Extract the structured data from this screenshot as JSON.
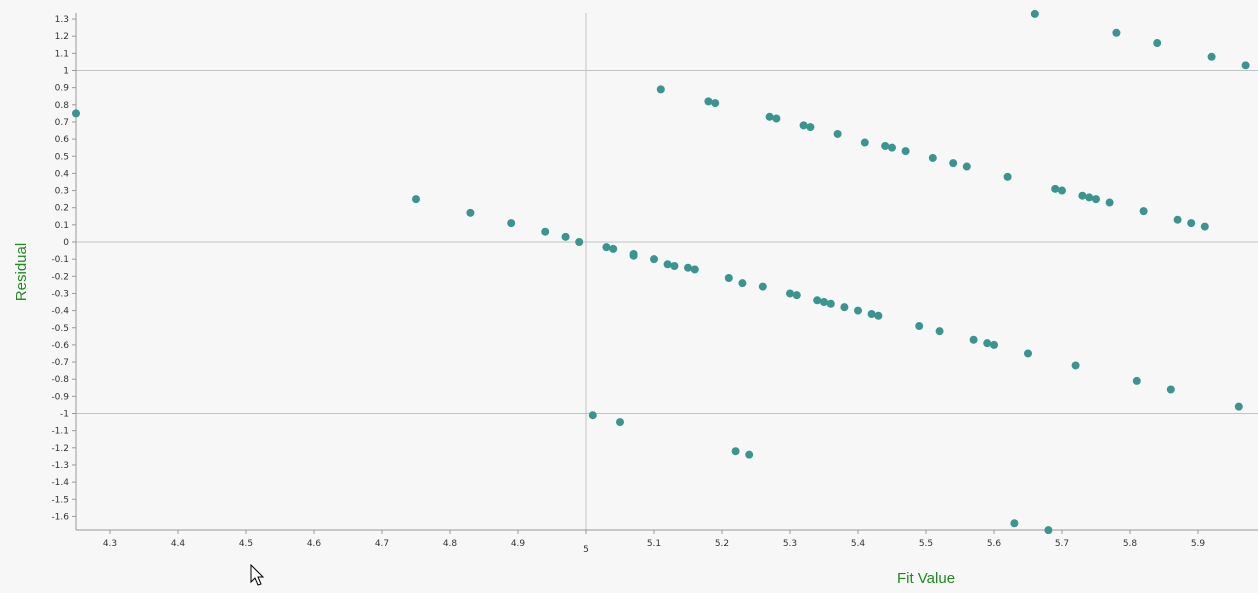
{
  "chart_data": {
    "type": "scatter",
    "title": "",
    "xlabel": "Fit Value",
    "ylabel": "Residual",
    "xlim": [
      4.25,
      5.98
    ],
    "ylim": [
      -1.68,
      1.33
    ],
    "x_ticks": [
      "4.3",
      "4.4",
      "4.5",
      "4.6",
      "4.7",
      "4.8",
      "4.9",
      "5",
      "5.1",
      "5.2",
      "5.3",
      "5.4",
      "5.5",
      "5.6",
      "5.7",
      "5.8",
      "5.9"
    ],
    "y_ticks": [
      "1.3",
      "1.2",
      "1.1",
      "1",
      "0.9",
      "0.8",
      "0.7",
      "0.6",
      "0.5",
      "0.4",
      "0.3",
      "0.2",
      "0.1",
      "0",
      "-0.1",
      "-0.2",
      "-0.3",
      "-0.4",
      "-0.5",
      "-0.6",
      "-0.7",
      "-0.8",
      "-0.9",
      "-1",
      "-1.1",
      "-1.2",
      "-1.3",
      "-1.4",
      "-1.5",
      "-1.6"
    ],
    "reference_lines": {
      "y": [
        1,
        0,
        -1
      ],
      "x": [
        5
      ]
    },
    "point_color": "#3a948f",
    "grid": false,
    "points": [
      {
        "x": 4.25,
        "y": 0.75
      },
      {
        "x": 4.75,
        "y": 0.25
      },
      {
        "x": 4.83,
        "y": 0.17
      },
      {
        "x": 4.89,
        "y": 0.11
      },
      {
        "x": 4.94,
        "y": 0.06
      },
      {
        "x": 4.97,
        "y": 0.03
      },
      {
        "x": 4.99,
        "y": 0.0
      },
      {
        "x": 5.01,
        "y": -1.01
      },
      {
        "x": 5.03,
        "y": -0.03
      },
      {
        "x": 5.04,
        "y": -0.04
      },
      {
        "x": 5.05,
        "y": -1.05
      },
      {
        "x": 5.07,
        "y": -0.07
      },
      {
        "x": 5.07,
        "y": -0.08
      },
      {
        "x": 5.1,
        "y": -0.1
      },
      {
        "x": 5.11,
        "y": 0.89
      },
      {
        "x": 5.12,
        "y": -0.13
      },
      {
        "x": 5.13,
        "y": -0.14
      },
      {
        "x": 5.15,
        "y": -0.15
      },
      {
        "x": 5.16,
        "y": -0.16
      },
      {
        "x": 5.18,
        "y": 0.82
      },
      {
        "x": 5.19,
        "y": 0.81
      },
      {
        "x": 5.21,
        "y": -0.21
      },
      {
        "x": 5.22,
        "y": -1.22
      },
      {
        "x": 5.23,
        "y": -0.24
      },
      {
        "x": 5.24,
        "y": -1.24
      },
      {
        "x": 5.26,
        "y": -0.26
      },
      {
        "x": 5.27,
        "y": 0.73
      },
      {
        "x": 5.28,
        "y": 0.72
      },
      {
        "x": 5.3,
        "y": -0.3
      },
      {
        "x": 5.31,
        "y": -0.31
      },
      {
        "x": 5.32,
        "y": 0.68
      },
      {
        "x": 5.33,
        "y": 0.67
      },
      {
        "x": 5.34,
        "y": -0.34
      },
      {
        "x": 5.35,
        "y": -0.35
      },
      {
        "x": 5.36,
        "y": -0.36
      },
      {
        "x": 5.37,
        "y": 0.63
      },
      {
        "x": 5.38,
        "y": -0.38
      },
      {
        "x": 5.4,
        "y": -0.4
      },
      {
        "x": 5.41,
        "y": 0.58
      },
      {
        "x": 5.42,
        "y": -0.42
      },
      {
        "x": 5.43,
        "y": -0.43
      },
      {
        "x": 5.44,
        "y": 0.56
      },
      {
        "x": 5.45,
        "y": 0.55
      },
      {
        "x": 5.47,
        "y": 0.53
      },
      {
        "x": 5.49,
        "y": -0.49
      },
      {
        "x": 5.51,
        "y": 0.49
      },
      {
        "x": 5.52,
        "y": -0.52
      },
      {
        "x": 5.54,
        "y": 0.46
      },
      {
        "x": 5.56,
        "y": 0.44
      },
      {
        "x": 5.57,
        "y": -0.57
      },
      {
        "x": 5.59,
        "y": -0.59
      },
      {
        "x": 5.6,
        "y": -0.6
      },
      {
        "x": 5.62,
        "y": 0.38
      },
      {
        "x": 5.63,
        "y": -1.64
      },
      {
        "x": 5.65,
        "y": -0.65
      },
      {
        "x": 5.66,
        "y": 1.33
      },
      {
        "x": 5.68,
        "y": -1.68
      },
      {
        "x": 5.69,
        "y": 0.31
      },
      {
        "x": 5.7,
        "y": 0.3
      },
      {
        "x": 5.72,
        "y": -0.72
      },
      {
        "x": 5.73,
        "y": 0.27
      },
      {
        "x": 5.74,
        "y": 0.26
      },
      {
        "x": 5.75,
        "y": 0.25
      },
      {
        "x": 5.77,
        "y": 0.23
      },
      {
        "x": 5.78,
        "y": 1.22
      },
      {
        "x": 5.81,
        "y": -0.81
      },
      {
        "x": 5.82,
        "y": 0.18
      },
      {
        "x": 5.84,
        "y": 1.16
      },
      {
        "x": 5.86,
        "y": -0.86
      },
      {
        "x": 5.87,
        "y": 0.13
      },
      {
        "x": 5.89,
        "y": 0.11
      },
      {
        "x": 5.91,
        "y": 0.09
      },
      {
        "x": 5.92,
        "y": 1.08
      },
      {
        "x": 5.96,
        "y": -0.96
      },
      {
        "x": 5.97,
        "y": 1.03
      }
    ]
  },
  "cursor_icon": "arrow-cursor-icon"
}
